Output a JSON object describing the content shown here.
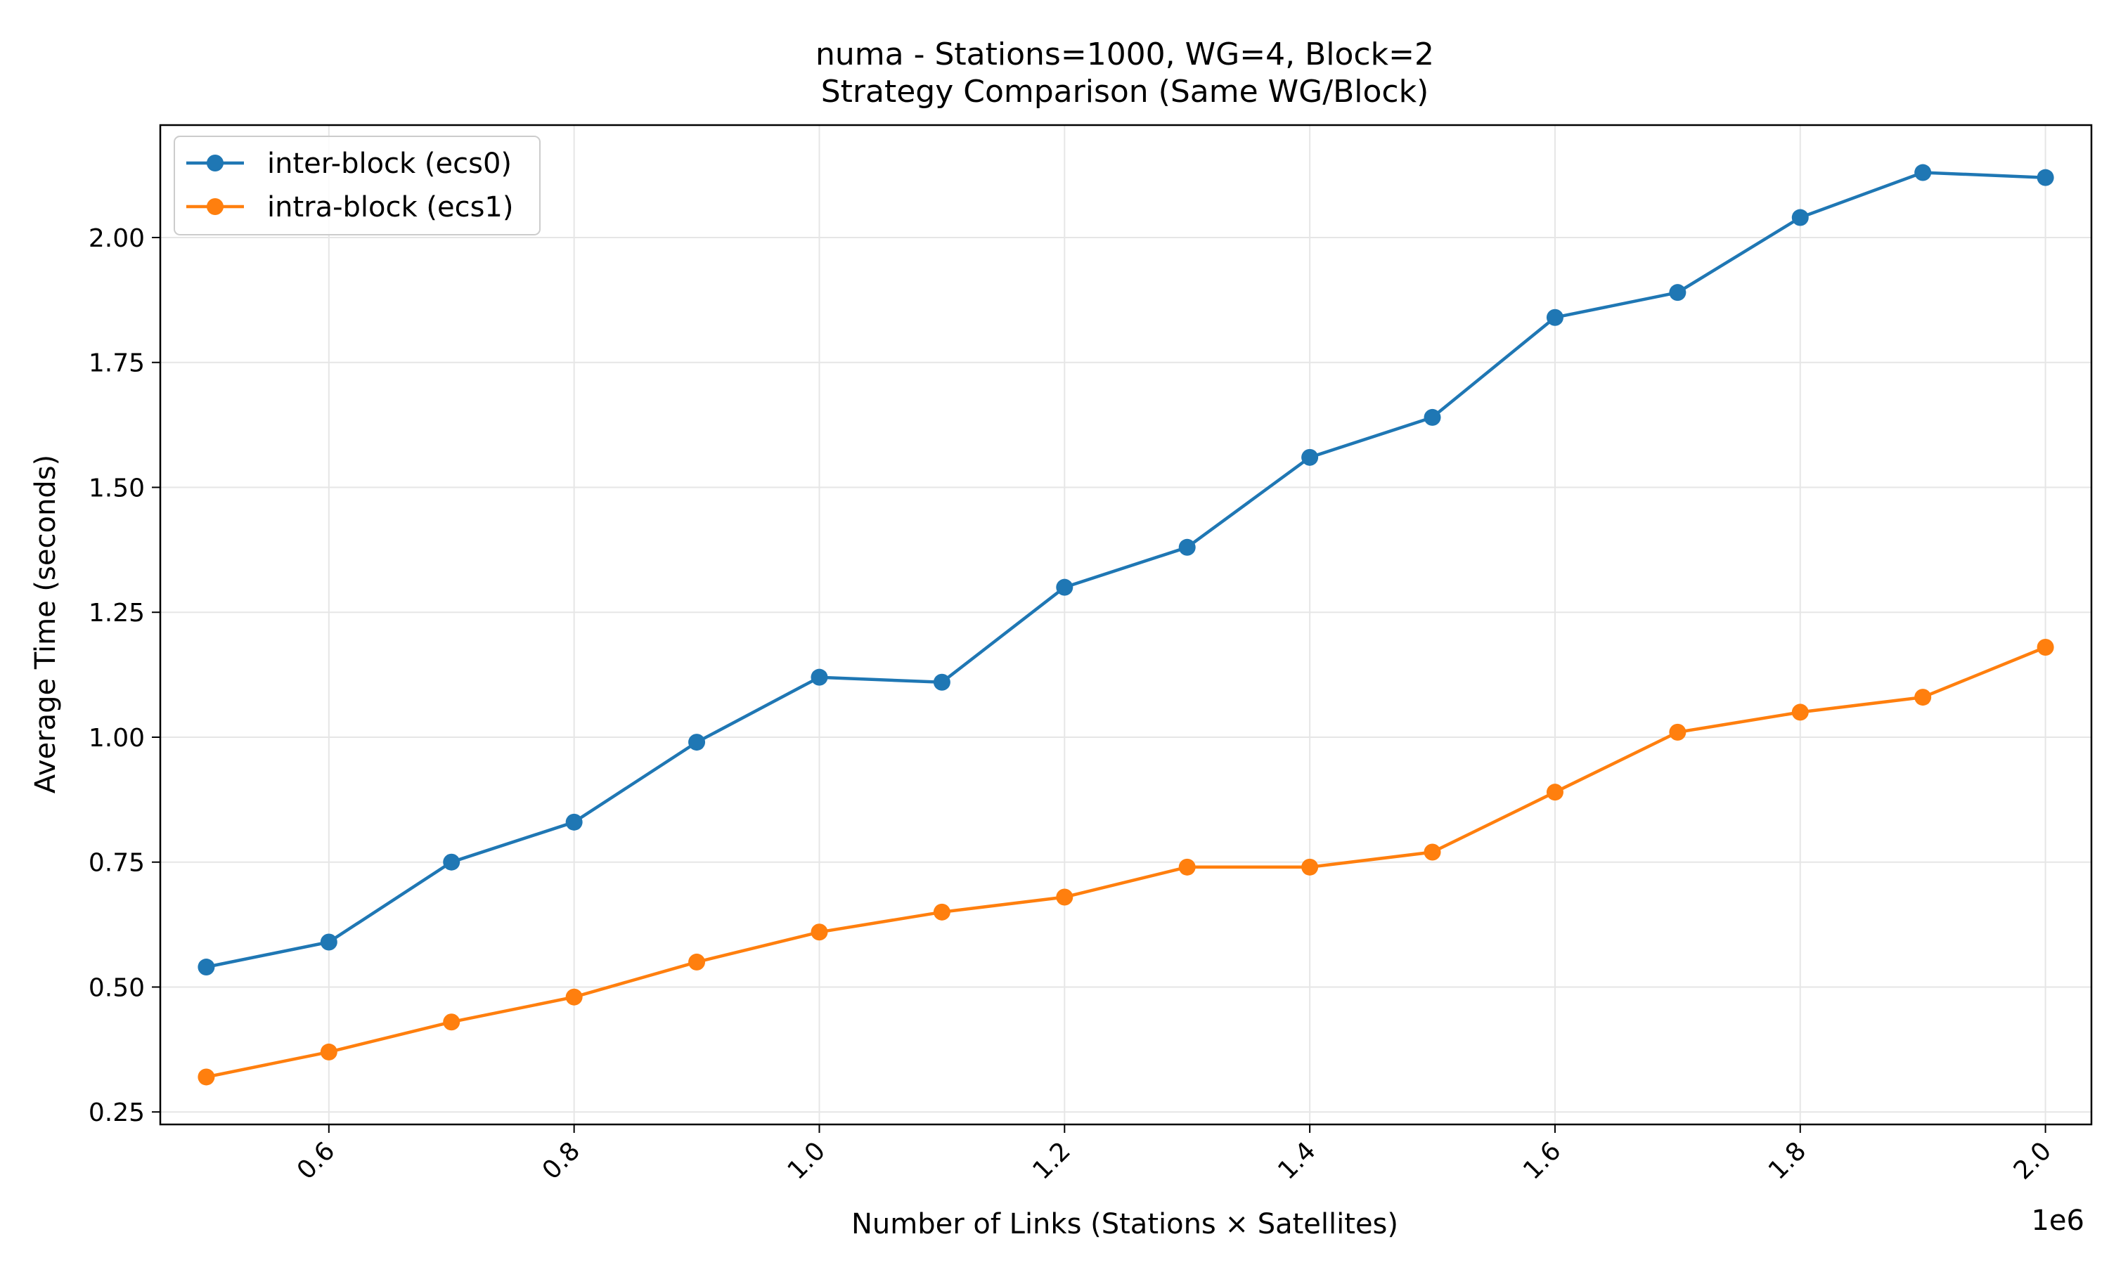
{
  "chart_data": {
    "type": "line",
    "title": "numa - Stations=1000, WG=4, Block=2",
    "subtitle": "Strategy Comparison (Same WG/Block)",
    "xlabel": "Number of Links (Stations × Satellites)",
    "ylabel": "Average Time (seconds)",
    "x_offset_label": "1e6",
    "xlim": [
      0.4625,
      2.0375
    ],
    "ylim": [
      0.225,
      2.225
    ],
    "xticks": [
      0.6,
      0.8,
      1.0,
      1.2,
      1.4,
      1.6,
      1.8,
      2.0
    ],
    "xtick_labels": [
      "0.6",
      "0.8",
      "1.0",
      "1.2",
      "1.4",
      "1.6",
      "1.8",
      "2.0"
    ],
    "yticks": [
      0.25,
      0.5,
      0.75,
      1.0,
      1.25,
      1.5,
      1.75,
      2.0
    ],
    "ytick_labels": [
      "0.25",
      "0.50",
      "0.75",
      "1.00",
      "1.25",
      "1.50",
      "1.75",
      "2.00"
    ],
    "grid": true,
    "legend_position": "top-left",
    "x": [
      0.5,
      0.6,
      0.7,
      0.8,
      0.9,
      1.0,
      1.1,
      1.2,
      1.3,
      1.4,
      1.5,
      1.6,
      1.7,
      1.8,
      1.9,
      2.0
    ],
    "series": [
      {
        "name": "inter-block (ecs0)",
        "color": "#1f77b4",
        "values": [
          0.54,
          0.59,
          0.75,
          0.83,
          0.99,
          1.12,
          1.11,
          1.3,
          1.38,
          1.56,
          1.64,
          1.84,
          1.89,
          2.04,
          2.13,
          2.12
        ]
      },
      {
        "name": "intra-block (ecs1)",
        "color": "#ff7f0e",
        "values": [
          0.32,
          0.37,
          0.43,
          0.48,
          0.55,
          0.61,
          0.65,
          0.68,
          0.74,
          0.74,
          0.77,
          0.89,
          1.01,
          1.05,
          1.08,
          1.18
        ]
      }
    ]
  }
}
